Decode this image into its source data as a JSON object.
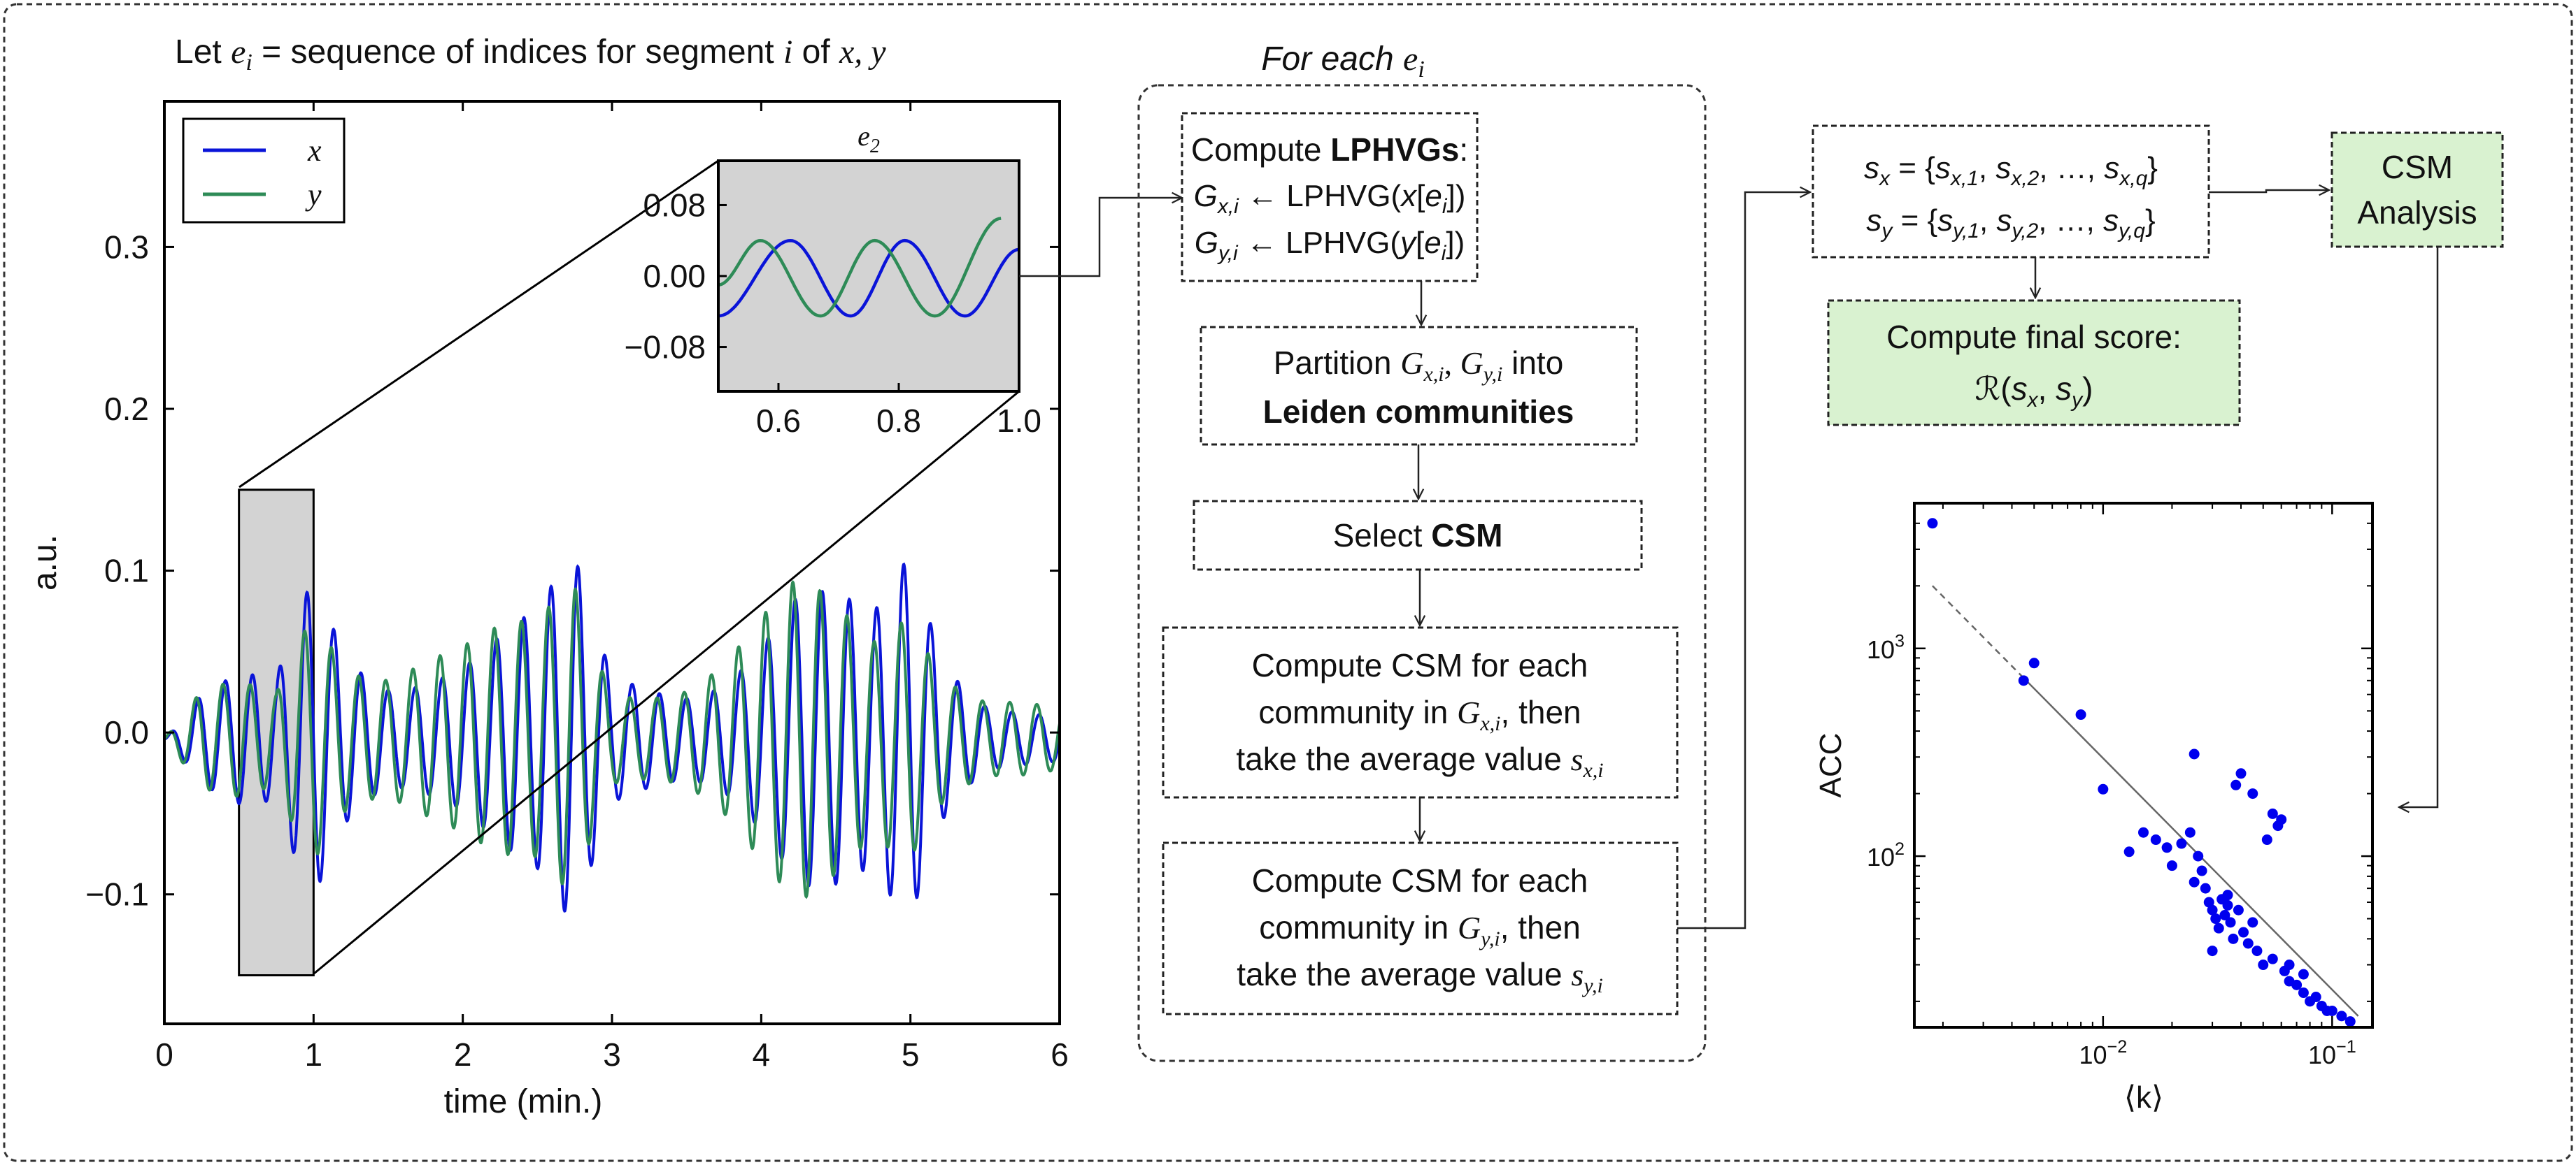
{
  "header": {
    "text": "Let e_i = sequence of indices for segment i of x, y",
    "pre": "Let ",
    "e": "e",
    "i": "i",
    "mid": " = sequence of indices for segment ",
    "seg": "i",
    "of": " of ",
    "xy": "x, y"
  },
  "for_each": {
    "pre": "For each ",
    "e": "e",
    "i": "i"
  },
  "flow": {
    "box1": {
      "title_pre": "Compute ",
      "title_bold": "LPHVGs",
      "title_post": ":",
      "line2": "G_{x,i} ← LPHVG(x[e_i])",
      "line3": "G_{y,i} ← LPHVG(y[e_i])"
    },
    "box2": {
      "line1": "Partition G_{x,i}, G_{y,i} into",
      "line2": "Leiden communities"
    },
    "box3": {
      "pre": "Select ",
      "bold": "CSM"
    },
    "box4": {
      "line1": "Compute CSM for each",
      "line2": "community in G_{x,i}, then",
      "line3": "take the average value s_{x,i}"
    },
    "box5": {
      "line1": "Compute CSM for each",
      "line2": "community in G_{y,i}, then",
      "line3": "take the average value s_{y,i}"
    },
    "sets": {
      "sx": "s_x = {s_{x,1}, s_{x,2}, …, s_{x,q}}",
      "sy": "s_y = {s_{y,1}, s_{y,2}, …, s_{y,q}}"
    },
    "csm_analysis": {
      "line1": "CSM",
      "line2": "Analysis"
    },
    "final_score": {
      "line1": "Compute final score:",
      "line2": "ℛ(s_x, s_y)"
    }
  },
  "colors": {
    "x_series": "#0a14d8",
    "y_series": "#2e8b57",
    "green_box": "#d9f2d0",
    "gray_region": "#d3d3d3",
    "scatter": "#0000ee"
  },
  "chart_data": [
    {
      "type": "line",
      "title": "",
      "xlabel": "time (min.)",
      "ylabel": "a.u.",
      "xlim": [
        0,
        6
      ],
      "ylim": [
        -0.18,
        0.39
      ],
      "xticks": [
        "0",
        "1",
        "2",
        "3",
        "4",
        "5",
        "6"
      ],
      "yticks": [
        "−0.1",
        "0.0",
        "0.1",
        "0.2",
        "0.3"
      ],
      "legend": {
        "placement": "top-left",
        "entries": [
          "x",
          "y"
        ]
      },
      "highlight_region": {
        "x": [
          0.5,
          1.0
        ],
        "y": [
          -0.15,
          0.15
        ]
      },
      "series": [
        {
          "name": "x",
          "x": [
            0,
            0.25,
            0.5,
            0.75,
            1.0,
            1.25,
            1.5,
            1.75,
            2.0,
            2.25,
            2.5,
            2.75,
            3.0,
            3.25,
            3.5,
            3.75,
            4.0,
            4.25,
            4.5,
            4.75,
            5.0,
            5.25,
            5.5,
            5.75,
            6.0
          ],
          "envelope": [
            0.0,
            0.03,
            0.04,
            0.04,
            0.13,
            0.08,
            0.06,
            0.06,
            0.06,
            0.07,
            0.08,
            0.12,
            0.05,
            0.05,
            0.05,
            0.06,
            0.08,
            0.1,
            0.09,
            0.08,
            0.14,
            0.07,
            0.04,
            0.03,
            0.02
          ]
        },
        {
          "name": "y",
          "x": [
            0,
            0.25,
            0.5,
            0.75,
            1.0,
            1.25,
            1.5,
            1.75,
            2.0,
            2.25,
            2.5,
            2.75,
            3.0,
            3.25,
            3.5,
            3.75,
            4.0,
            4.25,
            4.5,
            4.75,
            5.0,
            5.25,
            5.5,
            5.75,
            6.0
          ],
          "envelope": [
            0.0,
            0.03,
            0.04,
            0.04,
            0.14,
            0.08,
            0.06,
            0.06,
            0.06,
            0.07,
            0.08,
            0.13,
            0.05,
            0.05,
            0.05,
            0.06,
            0.08,
            0.1,
            0.09,
            0.08,
            0.13,
            0.07,
            0.04,
            0.03,
            0.02
          ]
        }
      ]
    },
    {
      "type": "line",
      "title": "e_2",
      "xlim": [
        0.5,
        1.0
      ],
      "ylim": [
        -0.13,
        0.13
      ],
      "xticks": [
        "0.6",
        "0.8",
        "1.0"
      ],
      "yticks": [
        "0.08",
        "0.00",
        "−0.08"
      ],
      "series": [
        {
          "name": "x",
          "x": [
            0.5,
            0.62,
            0.72,
            0.81,
            0.91,
            1.0
          ],
          "y": [
            -0.045,
            0.04,
            -0.045,
            0.04,
            -0.045,
            0.03
          ]
        },
        {
          "name": "y",
          "x": [
            0.5,
            0.57,
            0.67,
            0.76,
            0.86,
            0.97
          ],
          "y": [
            -0.01,
            0.04,
            -0.045,
            0.04,
            -0.045,
            0.065
          ]
        }
      ]
    },
    {
      "type": "scatter",
      "title": "",
      "xlabel": "⟨k⟩",
      "ylabel": "ACC",
      "xscale": "log",
      "yscale": "log",
      "xlim": [
        0.0015,
        0.15
      ],
      "ylim": [
        15,
        5000
      ],
      "xticks": [
        "10^{-2}",
        "10^{-1}"
      ],
      "yticks": [
        "10^3",
        "10^2"
      ],
      "fit_line": {
        "x": [
          0.0018,
          0.13
        ],
        "y": [
          2000,
          17
        ]
      },
      "points": [
        [
          0.0018,
          4000
        ],
        [
          0.0045,
          700
        ],
        [
          0.005,
          850
        ],
        [
          0.008,
          480
        ],
        [
          0.01,
          210
        ],
        [
          0.013,
          105
        ],
        [
          0.015,
          130
        ],
        [
          0.017,
          120
        ],
        [
          0.019,
          110
        ],
        [
          0.02,
          90
        ],
        [
          0.022,
          115
        ],
        [
          0.024,
          130
        ],
        [
          0.025,
          310
        ],
        [
          0.026,
          100
        ],
        [
          0.027,
          85
        ],
        [
          0.028,
          70
        ],
        [
          0.029,
          60
        ],
        [
          0.03,
          55
        ],
        [
          0.031,
          50
        ],
        [
          0.032,
          45
        ],
        [
          0.033,
          62
        ],
        [
          0.034,
          52
        ],
        [
          0.035,
          58
        ],
        [
          0.036,
          48
        ],
        [
          0.037,
          40
        ],
        [
          0.038,
          220
        ],
        [
          0.039,
          55
        ],
        [
          0.04,
          250
        ],
        [
          0.041,
          43
        ],
        [
          0.043,
          38
        ],
        [
          0.045,
          200
        ],
        [
          0.047,
          35
        ],
        [
          0.05,
          30
        ],
        [
          0.052,
          120
        ],
        [
          0.055,
          160
        ],
        [
          0.058,
          140
        ],
        [
          0.06,
          150
        ],
        [
          0.062,
          28
        ],
        [
          0.065,
          25
        ],
        [
          0.07,
          24
        ],
        [
          0.075,
          22
        ],
        [
          0.08,
          20
        ],
        [
          0.085,
          21
        ],
        [
          0.09,
          19
        ],
        [
          0.095,
          18
        ],
        [
          0.1,
          18
        ],
        [
          0.11,
          17
        ],
        [
          0.12,
          16
        ],
        [
          0.03,
          35
        ],
        [
          0.035,
          65
        ],
        [
          0.045,
          48
        ],
        [
          0.055,
          32
        ],
        [
          0.065,
          30
        ],
        [
          0.075,
          27
        ],
        [
          0.025,
          75
        ]
      ]
    }
  ]
}
